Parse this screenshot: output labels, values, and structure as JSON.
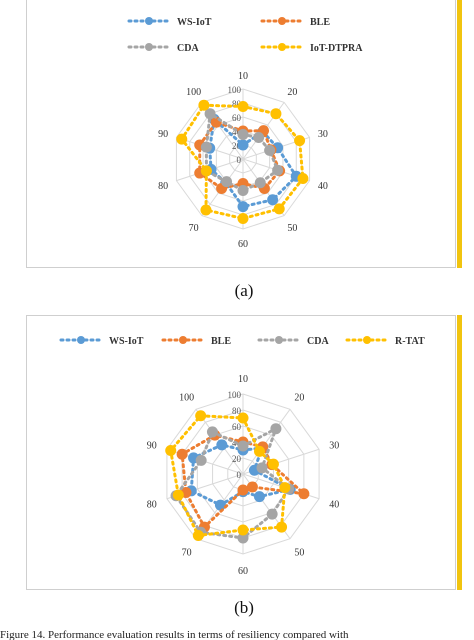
{
  "chart_data": [
    {
      "type": "radar",
      "panel_label": "(a)",
      "categories": [
        "10",
        "20",
        "30",
        "40",
        "50",
        "60",
        "70",
        "80",
        "90",
        "100"
      ],
      "radial_ticks": [
        "0",
        "20",
        "40",
        "60",
        "80",
        "100"
      ],
      "radial_range": [
        0,
        100
      ],
      "grid": true,
      "legend_position": "top",
      "series": [
        {
          "name": "WS-IoT",
          "color": "#5b9bd5",
          "values": [
            20,
            48,
            52,
            80,
            72,
            68,
            42,
            48,
            50,
            70
          ]
        },
        {
          "name": "BLE",
          "color": "#ed7d31",
          "values": [
            40,
            50,
            42,
            55,
            52,
            35,
            52,
            65,
            65,
            65
          ]
        },
        {
          "name": "CDA",
          "color": "#a5a5a5",
          "values": [
            35,
            38,
            40,
            52,
            42,
            45,
            40,
            55,
            55,
            80
          ]
        },
        {
          "name": "IoT-DTPRA",
          "color": "#ffc000",
          "values": [
            75,
            80,
            85,
            90,
            88,
            85,
            90,
            55,
            92,
            95
          ]
        }
      ]
    },
    {
      "type": "radar",
      "panel_label": "(b)",
      "categories": [
        "10",
        "20",
        "30",
        "40",
        "50",
        "60",
        "70",
        "80",
        "90",
        "100"
      ],
      "radial_ticks": [
        "0",
        "20",
        "40",
        "60",
        "80",
        "100"
      ],
      "radial_range": [
        0,
        100
      ],
      "grid": true,
      "legend_position": "top",
      "series": [
        {
          "name": "WS-IoT",
          "color": "#5b9bd5",
          "values": [
            30,
            40,
            15,
            62,
            35,
            22,
            48,
            68,
            65,
            45
          ]
        },
        {
          "name": "BLE",
          "color": "#ed7d31",
          "values": [
            40,
            42,
            38,
            80,
            20,
            20,
            82,
            75,
            80,
            60
          ]
        },
        {
          "name": "CDA",
          "color": "#a5a5a5",
          "values": [
            35,
            70,
            25,
            60,
            62,
            80,
            90,
            88,
            55,
            65
          ]
        },
        {
          "name": "R-TAT",
          "color": "#ffc000",
          "values": [
            70,
            35,
            40,
            55,
            82,
            70,
            95,
            85,
            95,
            90
          ]
        }
      ]
    }
  ],
  "captions": {
    "a": "(a)",
    "b": "(b)"
  },
  "footer_text": "Figure 14. Performance evaluation results in terms of resiliency compared with"
}
